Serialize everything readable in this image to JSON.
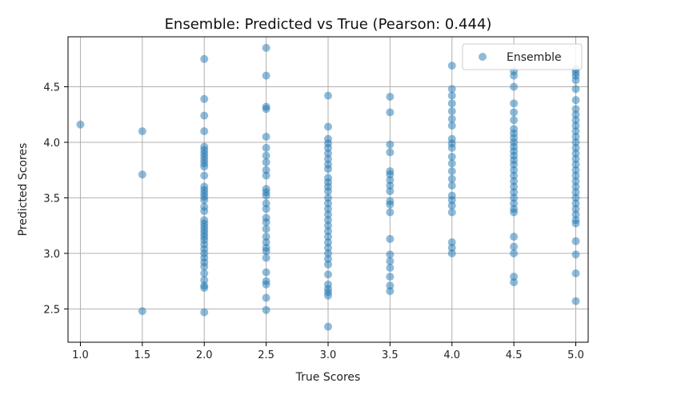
{
  "chart_data": {
    "type": "scatter",
    "title": "Ensemble: Predicted vs True (Pearson: 0.444)",
    "xlabel": "True Scores",
    "ylabel": "Predicted Scores",
    "xlim": [
      0.9,
      5.1
    ],
    "ylim": [
      2.2,
      4.95
    ],
    "xticks": [
      1.0,
      1.5,
      2.0,
      2.5,
      3.0,
      3.5,
      4.0,
      4.5,
      5.0
    ],
    "xtick_labels": [
      "1.0",
      "1.5",
      "2.0",
      "2.5",
      "3.0",
      "3.5",
      "4.0",
      "4.5",
      "5.0"
    ],
    "yticks": [
      2.5,
      3.0,
      3.5,
      4.0,
      4.5
    ],
    "ytick_labels": [
      "2.5",
      "3.0",
      "3.5",
      "4.0",
      "4.5"
    ],
    "grid": true,
    "legend_position": "top-right",
    "marker_color": "#1f77b4",
    "marker_alpha": 0.5,
    "series": [
      {
        "name": "Ensemble",
        "points": [
          [
            1.0,
            4.16
          ],
          [
            1.5,
            4.1
          ],
          [
            1.5,
            3.71
          ],
          [
            1.5,
            2.48
          ],
          [
            2.0,
            4.75
          ],
          [
            2.0,
            4.39
          ],
          [
            2.0,
            4.24
          ],
          [
            2.0,
            4.1
          ],
          [
            2.0,
            3.96
          ],
          [
            2.0,
            3.93
          ],
          [
            2.0,
            3.9
          ],
          [
            2.0,
            3.87
          ],
          [
            2.0,
            3.84
          ],
          [
            2.0,
            3.81
          ],
          [
            2.0,
            3.78
          ],
          [
            2.0,
            3.7
          ],
          [
            2.0,
            3.6
          ],
          [
            2.0,
            3.57
          ],
          [
            2.0,
            3.54
          ],
          [
            2.0,
            3.51
          ],
          [
            2.0,
            3.48
          ],
          [
            2.0,
            3.42
          ],
          [
            2.0,
            3.38
          ],
          [
            2.0,
            3.3
          ],
          [
            2.0,
            3.27
          ],
          [
            2.0,
            3.24
          ],
          [
            2.0,
            3.21
          ],
          [
            2.0,
            3.18
          ],
          [
            2.0,
            3.15
          ],
          [
            2.0,
            3.12
          ],
          [
            2.0,
            3.08
          ],
          [
            2.0,
            3.04
          ],
          [
            2.0,
            3.0
          ],
          [
            2.0,
            2.96
          ],
          [
            2.0,
            2.92
          ],
          [
            2.0,
            2.88
          ],
          [
            2.0,
            2.82
          ],
          [
            2.0,
            2.76
          ],
          [
            2.0,
            2.71
          ],
          [
            2.0,
            2.69
          ],
          [
            2.0,
            2.47
          ],
          [
            2.5,
            4.85
          ],
          [
            2.5,
            4.6
          ],
          [
            2.5,
            4.32
          ],
          [
            2.5,
            4.3
          ],
          [
            2.5,
            4.05
          ],
          [
            2.5,
            3.95
          ],
          [
            2.5,
            3.88
          ],
          [
            2.5,
            3.82
          ],
          [
            2.5,
            3.75
          ],
          [
            2.5,
            3.7
          ],
          [
            2.5,
            3.58
          ],
          [
            2.5,
            3.55
          ],
          [
            2.5,
            3.52
          ],
          [
            2.5,
            3.45
          ],
          [
            2.5,
            3.4
          ],
          [
            2.5,
            3.32
          ],
          [
            2.5,
            3.28
          ],
          [
            2.5,
            3.22
          ],
          [
            2.5,
            3.15
          ],
          [
            2.5,
            3.1
          ],
          [
            2.5,
            3.05
          ],
          [
            2.5,
            3.02
          ],
          [
            2.5,
            2.96
          ],
          [
            2.5,
            2.83
          ],
          [
            2.5,
            2.75
          ],
          [
            2.5,
            2.72
          ],
          [
            2.5,
            2.6
          ],
          [
            2.5,
            2.49
          ],
          [
            3.0,
            4.42
          ],
          [
            3.0,
            4.14
          ],
          [
            3.0,
            4.03
          ],
          [
            3.0,
            3.99
          ],
          [
            3.0,
            3.95
          ],
          [
            3.0,
            3.9
          ],
          [
            3.0,
            3.85
          ],
          [
            3.0,
            3.8
          ],
          [
            3.0,
            3.76
          ],
          [
            3.0,
            3.68
          ],
          [
            3.0,
            3.64
          ],
          [
            3.0,
            3.6
          ],
          [
            3.0,
            3.56
          ],
          [
            3.0,
            3.5
          ],
          [
            3.0,
            3.45
          ],
          [
            3.0,
            3.4
          ],
          [
            3.0,
            3.35
          ],
          [
            3.0,
            3.3
          ],
          [
            3.0,
            3.25
          ],
          [
            3.0,
            3.2
          ],
          [
            3.0,
            3.15
          ],
          [
            3.0,
            3.1
          ],
          [
            3.0,
            3.05
          ],
          [
            3.0,
            3.0
          ],
          [
            3.0,
            2.95
          ],
          [
            3.0,
            2.9
          ],
          [
            3.0,
            2.81
          ],
          [
            3.0,
            2.72
          ],
          [
            3.0,
            2.68
          ],
          [
            3.0,
            2.65
          ],
          [
            3.0,
            2.62
          ],
          [
            3.0,
            2.34
          ],
          [
            3.5,
            4.41
          ],
          [
            3.5,
            4.27
          ],
          [
            3.5,
            3.98
          ],
          [
            3.5,
            3.91
          ],
          [
            3.5,
            3.74
          ],
          [
            3.5,
            3.71
          ],
          [
            3.5,
            3.66
          ],
          [
            3.5,
            3.61
          ],
          [
            3.5,
            3.56
          ],
          [
            3.5,
            3.47
          ],
          [
            3.5,
            3.44
          ],
          [
            3.5,
            3.37
          ],
          [
            3.5,
            3.13
          ],
          [
            3.5,
            2.99
          ],
          [
            3.5,
            2.93
          ],
          [
            3.5,
            2.87
          ],
          [
            3.5,
            2.79
          ],
          [
            3.5,
            2.71
          ],
          [
            3.5,
            2.66
          ],
          [
            4.0,
            4.69
          ],
          [
            4.0,
            4.48
          ],
          [
            4.0,
            4.42
          ],
          [
            4.0,
            4.35
          ],
          [
            4.0,
            4.28
          ],
          [
            4.0,
            4.21
          ],
          [
            4.0,
            4.15
          ],
          [
            4.0,
            4.03
          ],
          [
            4.0,
            3.99
          ],
          [
            4.0,
            3.95
          ],
          [
            4.0,
            3.87
          ],
          [
            4.0,
            3.81
          ],
          [
            4.0,
            3.74
          ],
          [
            4.0,
            3.67
          ],
          [
            4.0,
            3.61
          ],
          [
            4.0,
            3.52
          ],
          [
            4.0,
            3.48
          ],
          [
            4.0,
            3.43
          ],
          [
            4.0,
            3.37
          ],
          [
            4.0,
            3.1
          ],
          [
            4.0,
            3.05
          ],
          [
            4.0,
            3.0
          ],
          [
            4.5,
            4.64
          ],
          [
            4.5,
            4.6
          ],
          [
            4.5,
            4.5
          ],
          [
            4.5,
            4.35
          ],
          [
            4.5,
            4.27
          ],
          [
            4.5,
            4.2
          ],
          [
            4.5,
            4.12
          ],
          [
            4.5,
            4.08
          ],
          [
            4.5,
            4.04
          ],
          [
            4.5,
            4.0
          ],
          [
            4.5,
            3.96
          ],
          [
            4.5,
            3.92
          ],
          [
            4.5,
            3.88
          ],
          [
            4.5,
            3.84
          ],
          [
            4.5,
            3.8
          ],
          [
            4.5,
            3.75
          ],
          [
            4.5,
            3.7
          ],
          [
            4.5,
            3.65
          ],
          [
            4.5,
            3.6
          ],
          [
            4.5,
            3.55
          ],
          [
            4.5,
            3.5
          ],
          [
            4.5,
            3.45
          ],
          [
            4.5,
            3.4
          ],
          [
            4.5,
            3.37
          ],
          [
            4.5,
            3.15
          ],
          [
            4.5,
            3.06
          ],
          [
            4.5,
            3.0
          ],
          [
            4.5,
            2.79
          ],
          [
            4.5,
            2.74
          ],
          [
            5.0,
            4.66
          ],
          [
            5.0,
            4.63
          ],
          [
            5.0,
            4.6
          ],
          [
            5.0,
            4.56
          ],
          [
            5.0,
            4.48
          ],
          [
            5.0,
            4.38
          ],
          [
            5.0,
            4.3
          ],
          [
            5.0,
            4.25
          ],
          [
            5.0,
            4.2
          ],
          [
            5.0,
            4.15
          ],
          [
            5.0,
            4.1
          ],
          [
            5.0,
            4.05
          ],
          [
            5.0,
            4.0
          ],
          [
            5.0,
            3.95
          ],
          [
            5.0,
            3.9
          ],
          [
            5.0,
            3.85
          ],
          [
            5.0,
            3.8
          ],
          [
            5.0,
            3.75
          ],
          [
            5.0,
            3.7
          ],
          [
            5.0,
            3.65
          ],
          [
            5.0,
            3.6
          ],
          [
            5.0,
            3.55
          ],
          [
            5.0,
            3.5
          ],
          [
            5.0,
            3.45
          ],
          [
            5.0,
            3.4
          ],
          [
            5.0,
            3.35
          ],
          [
            5.0,
            3.3
          ],
          [
            5.0,
            3.27
          ],
          [
            5.0,
            3.11
          ],
          [
            5.0,
            2.99
          ],
          [
            5.0,
            2.82
          ],
          [
            5.0,
            2.57
          ]
        ]
      }
    ]
  }
}
